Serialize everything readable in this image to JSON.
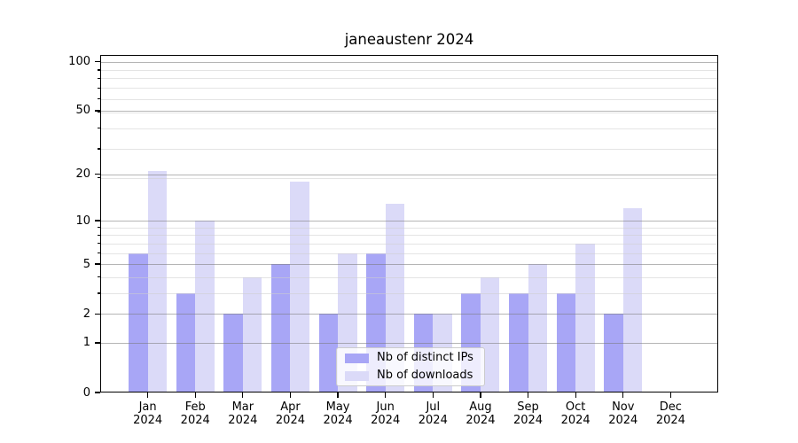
{
  "title": "janeaustenr 2024",
  "chart_data": {
    "type": "bar",
    "title": "janeaustenr 2024",
    "categories": [
      "Jan 2024",
      "Feb 2024",
      "Mar 2024",
      "Apr 2024",
      "May 2024",
      "Jun 2024",
      "Jul 2024",
      "Aug 2024",
      "Sep 2024",
      "Oct 2024",
      "Nov 2024",
      "Dec 2024"
    ],
    "series": [
      {
        "name": "Nb of distinct IPs",
        "color": "#a8a6f6",
        "values": [
          6,
          3,
          2,
          5,
          2,
          6,
          2,
          3,
          3,
          3,
          2,
          0
        ]
      },
      {
        "name": "Nb of downloads",
        "color": "#dbdaf8",
        "values": [
          21,
          10,
          4,
          18,
          6,
          13,
          2,
          4,
          5,
          7,
          12,
          0
        ]
      }
    ],
    "xlabel": "",
    "ylabel": "",
    "y_axis": {
      "scale": "log1p",
      "major_ticks": [
        0,
        1,
        2,
        5,
        10,
        20,
        50,
        100
      ],
      "minor_ticks": [
        3,
        4,
        6,
        7,
        8,
        9,
        19,
        29,
        39,
        49,
        59,
        69,
        79,
        89
      ],
      "ylim": [
        0,
        110
      ]
    },
    "grid": true,
    "legend_position": "lower-center"
  },
  "colors": {
    "bar_ips": "#a8a6f6",
    "bar_downloads": "#dbdaf8",
    "major_grid": "#b7b7b7",
    "minor_grid": "#e6e6e6",
    "spine": "#000000",
    "background": "#ffffff"
  }
}
